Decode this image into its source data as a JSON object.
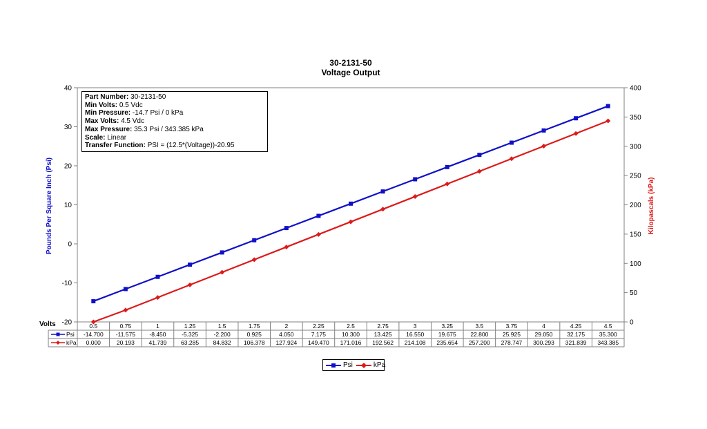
{
  "chart_data": {
    "type": "line",
    "title": "30-2131-50",
    "subtitle": "Voltage Output",
    "xlabel": "Volts",
    "ylabel_left": "Pounds Per Square Inch (Psi)",
    "ylabel_right": "Kilopascals (kPa)",
    "ylim_left": [
      -20,
      40
    ],
    "yticks_left": [
      "40",
      "30",
      "20",
      "10",
      "0",
      "-10",
      "-20"
    ],
    "ylim_right": [
      0,
      400
    ],
    "yticks_right": [
      "400",
      "350",
      "300",
      "250",
      "200",
      "150",
      "100",
      "50",
      "0"
    ],
    "categories": [
      "0.5",
      "0.75",
      "1",
      "1.25",
      "1.5",
      "1.75",
      "2",
      "2.25",
      "2.5",
      "2.75",
      "3",
      "3.25",
      "3.5",
      "3.75",
      "4",
      "4.25",
      "4.5"
    ],
    "series": [
      {
        "name": "Psi",
        "axis": "left",
        "color": "#1010c8",
        "marker": "square",
        "values": [
          -14.7,
          -11.575,
          -8.45,
          -5.325,
          -2.2,
          0.925,
          4.05,
          7.175,
          10.3,
          13.425,
          16.55,
          19.675,
          22.8,
          25.925,
          29.05,
          32.175,
          35.3
        ],
        "labels": [
          "-14.700",
          "-11.575",
          "-8.450",
          "-5.325",
          "-2.200",
          "0.925",
          "4.050",
          "7.175",
          "10.300",
          "13.425",
          "16.550",
          "19.675",
          "22.800",
          "25.925",
          "29.050",
          "32.175",
          "35.300"
        ]
      },
      {
        "name": "kPa",
        "axis": "right",
        "color": "#dd1a1a",
        "marker": "diamond",
        "values": [
          0,
          20.193,
          41.739,
          63.285,
          84.832,
          106.378,
          127.924,
          149.47,
          171.016,
          192.562,
          214.108,
          235.654,
          257.2,
          278.747,
          300.293,
          321.839,
          343.385
        ],
        "labels": [
          "0.000",
          "20.193",
          "41.739",
          "63.285",
          "84.832",
          "106.378",
          "127.924",
          "149.470",
          "171.016",
          "192.562",
          "214.108",
          "235.654",
          "257.200",
          "278.747",
          "300.293",
          "321.839",
          "343.385"
        ]
      }
    ],
    "grid": false,
    "legend_position": "bottom",
    "info_box": {
      "part_number_label": "Part Number:",
      "part_number_value": "30-2131-50",
      "min_volts_label": "Min Volts:",
      "min_volts_value": "0.5 Vdc",
      "min_pressure_label": "Min Pressure:",
      "min_pressure_value": "-14.7 Psi / 0 kPa",
      "max_volts_label": "Max Volts:",
      "max_volts_value": "4.5 Vdc",
      "max_pressure_label": "Max Pressure:",
      "max_pressure_value": "35.3 Psi / 343.385 kPa",
      "scale_label": "Scale:",
      "scale_value": "Linear",
      "transfer_label": "Transfer Function:",
      "transfer_value": "PSI = (12.5*(Voltage))-20.95"
    }
  }
}
